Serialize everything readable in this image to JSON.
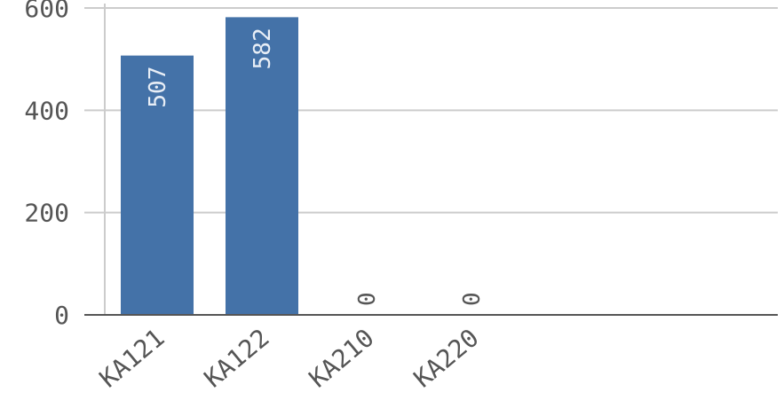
{
  "chart_data": {
    "type": "bar",
    "title": "",
    "xlabel": "",
    "ylabel": "",
    "categories": [
      "KA121",
      "KA122",
      "KA210",
      "KA220"
    ],
    "values": [
      507,
      582,
      0,
      0
    ],
    "data_labels": [
      "507",
      "582",
      "0",
      "0"
    ],
    "ylim": [
      0,
      600
    ],
    "yticks": [
      0,
      200,
      400,
      600
    ],
    "ytick_labels": [
      "0",
      "200",
      "400",
      "600"
    ],
    "grid": true,
    "legend": "none",
    "colors": {
      "bar": "#4472a8",
      "label_inside": "#e8eef6",
      "label_outside": "#555555",
      "grid": "#cccccc",
      "axis": "#555555"
    }
  }
}
